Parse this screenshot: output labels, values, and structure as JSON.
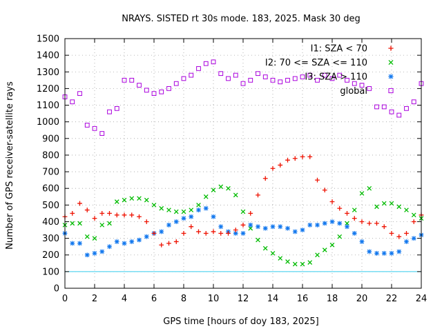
{
  "chart_data": {
    "type": "scatter",
    "title": "NRAYS. SISTED rt 30s mode. 183, 2025. Mask 30 deg",
    "xlabel": "GPS time [hours of doy 183, 2025]",
    "ylabel": "Number of GPS receiver-satellite rays",
    "xlim": [
      0,
      24
    ],
    "ylim": [
      0,
      1500
    ],
    "x_ticks": [
      "0",
      "2",
      "4",
      "6",
      "8",
      "10",
      "12",
      "14",
      "16",
      "18",
      "20",
      "22",
      "24"
    ],
    "y_ticks": [
      "0",
      "100",
      "200",
      "300",
      "400",
      "500",
      "600",
      "700",
      "800",
      "900",
      "1000",
      "1100",
      "1200",
      "1300",
      "1400",
      "1500"
    ],
    "grid": true,
    "legend_position": "top-right",
    "reference_line": {
      "y": 100,
      "color": "#33ccee"
    },
    "series": [
      {
        "name": "I1: SZA < 70",
        "color": "#ee1100",
        "marker": "plus",
        "x": [
          0,
          0.5,
          1,
          1.5,
          2,
          2.5,
          3,
          3.5,
          4,
          4.5,
          5,
          5.5,
          6,
          6.5,
          7,
          7.5,
          8,
          8.5,
          9,
          9.5,
          10,
          10.5,
          11,
          11.5,
          12,
          12.5,
          13,
          13.5,
          14,
          14.5,
          15,
          15.5,
          16,
          16.5,
          17,
          17.5,
          18,
          18.5,
          19,
          19.5,
          20,
          20.5,
          21,
          21.5,
          22,
          22.5,
          23,
          23.5,
          24
        ],
        "y": [
          430,
          450,
          510,
          470,
          420,
          450,
          450,
          440,
          440,
          440,
          430,
          400,
          330,
          260,
          270,
          280,
          330,
          370,
          340,
          330,
          340,
          330,
          330,
          350,
          380,
          450,
          560,
          660,
          720,
          740,
          770,
          780,
          790,
          790,
          650,
          590,
          520,
          480,
          450,
          420,
          400,
          390,
          390,
          370,
          330,
          310,
          330,
          400,
          440
        ]
      },
      {
        "name": "I2: 70 <= SZA <= 110",
        "color": "#00bb00",
        "marker": "cross",
        "x": [
          0,
          0.5,
          1,
          1.5,
          2,
          2.5,
          3,
          3.5,
          4,
          4.5,
          5,
          5.5,
          6,
          6.5,
          7,
          7.5,
          8,
          8.5,
          9,
          9.5,
          10,
          10.5,
          11,
          11.5,
          12,
          12.5,
          13,
          13.5,
          14,
          14.5,
          15,
          15.5,
          16,
          16.5,
          17,
          17.5,
          18,
          18.5,
          19,
          19.5,
          20,
          20.5,
          21,
          21.5,
          22,
          22.5,
          23,
          23.5,
          24
        ],
        "y": [
          380,
          390,
          390,
          310,
          300,
          380,
          390,
          520,
          530,
          540,
          540,
          530,
          500,
          480,
          470,
          460,
          460,
          470,
          500,
          550,
          590,
          610,
          600,
          560,
          460,
          360,
          290,
          240,
          210,
          180,
          160,
          145,
          145,
          155,
          200,
          230,
          260,
          310,
          390,
          470,
          570,
          600,
          490,
          510,
          510,
          490,
          470,
          440,
          420
        ]
      },
      {
        "name": "I3: SZA > 110",
        "color": "#1177ee",
        "marker": "star",
        "x": [
          0,
          0.5,
          1,
          1.5,
          2,
          2.5,
          3,
          3.5,
          4,
          4.5,
          5,
          5.5,
          6,
          6.5,
          7,
          7.5,
          8,
          8.5,
          9,
          9.5,
          10,
          10.5,
          11,
          11.5,
          12,
          12.5,
          13,
          13.5,
          14,
          14.5,
          15,
          15.5,
          16,
          16.5,
          17,
          17.5,
          18,
          18.5,
          19,
          19.5,
          20,
          20.5,
          21,
          21.5,
          22,
          22.5,
          23,
          23.5,
          24
        ],
        "y": [
          330,
          270,
          270,
          200,
          210,
          220,
          250,
          280,
          270,
          280,
          290,
          310,
          330,
          340,
          380,
          400,
          420,
          430,
          470,
          480,
          430,
          370,
          340,
          330,
          330,
          380,
          370,
          360,
          370,
          370,
          360,
          340,
          350,
          380,
          380,
          390,
          400,
          390,
          370,
          330,
          280,
          220,
          210,
          210,
          210,
          220,
          280,
          300,
          320
        ]
      },
      {
        "name": "global",
        "color": "#aa00dd",
        "marker": "square",
        "x": [
          0,
          0.5,
          1,
          1.5,
          2,
          2.5,
          3,
          3.5,
          4,
          4.5,
          5,
          5.5,
          6,
          6.5,
          7,
          7.5,
          8,
          8.5,
          9,
          9.5,
          10,
          10.5,
          11,
          11.5,
          12,
          12.5,
          13,
          13.5,
          14,
          14.5,
          15,
          15.5,
          16,
          16.5,
          17,
          17.5,
          18,
          18.5,
          19,
          19.5,
          20,
          20.5,
          21,
          21.5,
          22,
          22.5,
          23,
          23.5,
          24
        ],
        "y": [
          1150,
          1120,
          1170,
          980,
          960,
          930,
          1060,
          1080,
          1250,
          1250,
          1220,
          1190,
          1170,
          1180,
          1200,
          1230,
          1260,
          1280,
          1320,
          1350,
          1360,
          1290,
          1260,
          1280,
          1230,
          1250,
          1290,
          1270,
          1250,
          1240,
          1250,
          1260,
          1270,
          1280,
          1250,
          1280,
          1260,
          1280,
          1250,
          1230,
          1220,
          1200,
          1090,
          1090,
          1060,
          1040,
          1080,
          1120,
          1230
        ]
      }
    ]
  }
}
